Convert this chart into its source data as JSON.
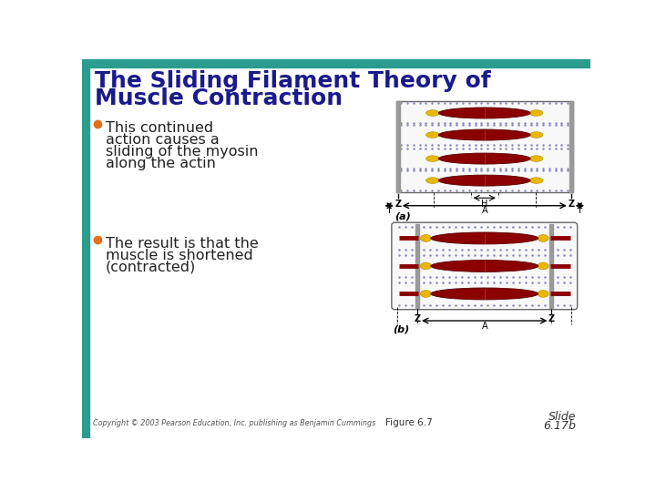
{
  "title_line1": "The Sliding Filament Theory of",
  "title_line2": "Muscle Contraction",
  "title_color": "#1a1a8c",
  "bg_color": "#ffffff",
  "top_bar_color": "#2a9d8f",
  "left_bar_color": "#2a9d8f",
  "bullet1_lines": [
    "This continued",
    "action causes a",
    "sliding of the myosin",
    "along the actin"
  ],
  "bullet2_lines": [
    "The result is that the",
    "muscle is shortened",
    "(contracted)"
  ],
  "bullet_color": "#222222",
  "bullet_dot_color": "#e07020",
  "copyright": "Copyright © 2003 Pearson Education, Inc. publishing as Benjamin Cummings",
  "figure_label": "Figure 6.7",
  "slide_label_line1": "Slide",
  "slide_label_line2": "6.17b",
  "diagram_a_label": "(a)",
  "diagram_b_label": "(b)",
  "dark_red": "#8b0000",
  "gold": "#e8b800",
  "actin_color": "#8888bb",
  "z_line_color": "#888888",
  "diagram_border": "#666666"
}
